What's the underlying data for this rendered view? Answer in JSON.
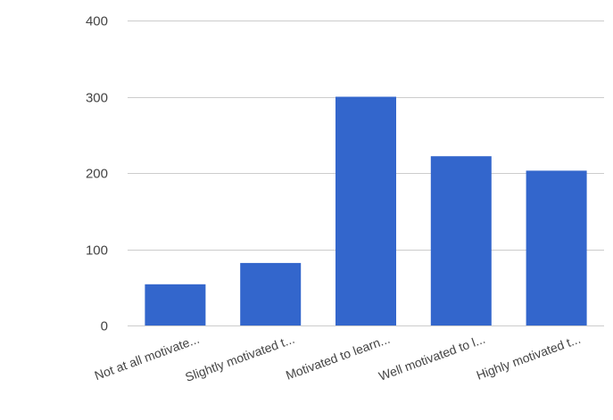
{
  "chart_data": {
    "type": "bar",
    "categories": [
      "Not at all motivate...",
      "Slightly motivated t...",
      "Motivated to learn...",
      "Well motivated to l...",
      "Highly motivated t..."
    ],
    "values": [
      54,
      82,
      300,
      222,
      203
    ],
    "ylim": [
      0,
      400
    ],
    "yticks": [
      0,
      100,
      200,
      300,
      400
    ],
    "grid": true,
    "title": "",
    "xlabel": "",
    "ylabel": "",
    "bar_color": "#3366cc",
    "grid_color": "#cccccc",
    "label_color": "#444444"
  }
}
